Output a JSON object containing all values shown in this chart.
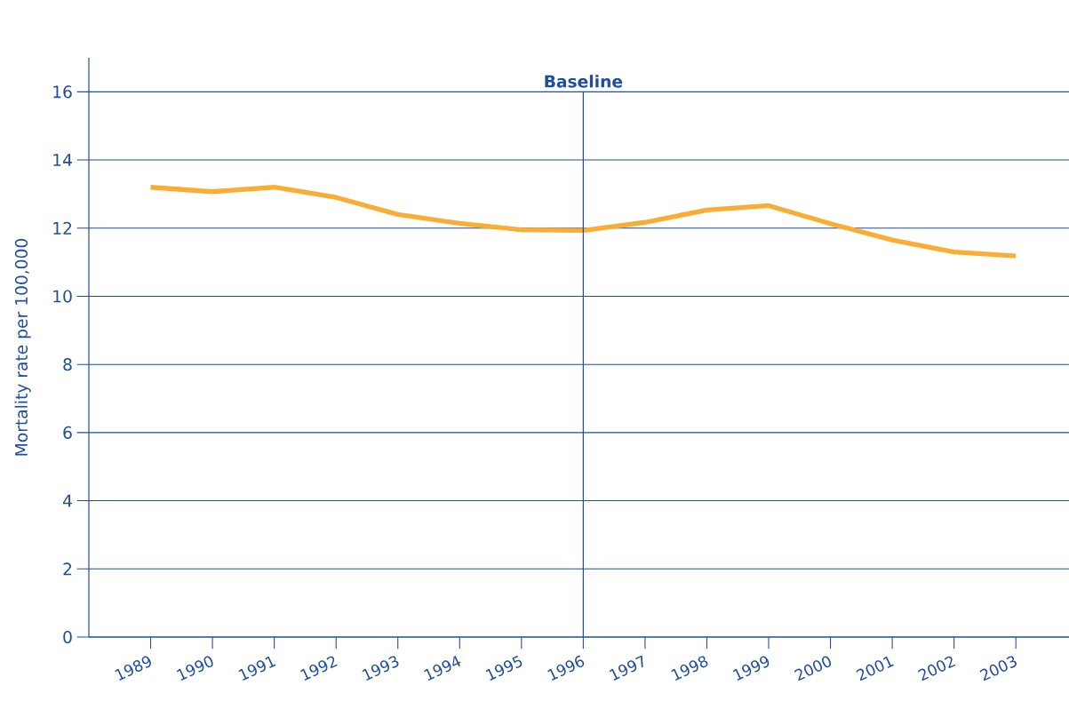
{
  "chart_data": {
    "type": "line",
    "ylabel": "Mortality rate per 100,000",
    "categories": [
      "1989",
      "1990",
      "1991",
      "1992",
      "1993",
      "1994",
      "1995",
      "1996",
      "1997",
      "1998",
      "1999",
      "2000",
      "2001",
      "2002",
      "2003"
    ],
    "series": [
      {
        "color": "#f9ad35",
        "values": [
          13.2,
          13.07,
          13.2,
          12.9,
          12.4,
          12.14,
          11.95,
          11.93,
          12.17,
          12.53,
          12.66,
          12.13,
          11.65,
          11.3,
          11.18
        ]
      }
    ],
    "ylim": [
      0,
      17
    ],
    "yticks": [
      0,
      2,
      4,
      6,
      8,
      10,
      12,
      14,
      16
    ],
    "grid": "y",
    "ref_lines": [
      {
        "axis": "x",
        "value": "1996",
        "label": "Baseline",
        "color": "#1f4e9c"
      }
    ]
  }
}
